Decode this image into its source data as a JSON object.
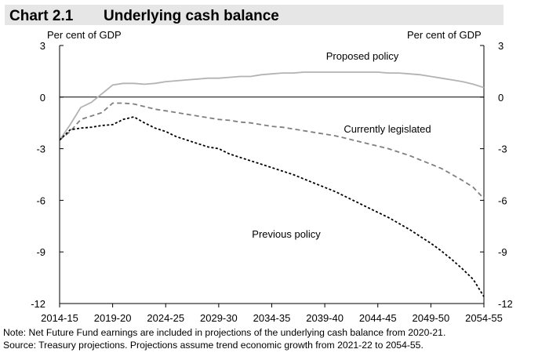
{
  "header": {
    "chart_number": "Chart 2.1",
    "title": "Underlying cash balance"
  },
  "notes": {
    "note": "Note: Net Future Fund earnings are included in projections of the underlying cash balance from 2020-21.",
    "source": "Source: Treasury projections. Projections assume trend economic growth from 2021-22 to 2054-55."
  },
  "chart_data": {
    "type": "line",
    "title": "Underlying cash balance",
    "ylabel_left": "Per cent of GDP",
    "ylabel_right": "Per cent of GDP",
    "ylim": [
      -12,
      3
    ],
    "yticks": [
      3,
      0,
      -3,
      -6,
      -9,
      -12
    ],
    "x_categories": [
      "2014-15",
      "2019-20",
      "2024-25",
      "2029-30",
      "2034-35",
      "2039-40",
      "2044-45",
      "2049-50",
      "2054-55"
    ],
    "xlim": [
      2014,
      2054
    ],
    "grid": false,
    "colors": {
      "proposed": "#b3b3b3",
      "legislated": "#7f7f7f",
      "previous": "#000000"
    },
    "series": [
      {
        "name": "Proposed policy",
        "style": "solid",
        "x": [
          2014,
          2015,
          2016,
          2017,
          2018,
          2019,
          2020,
          2021,
          2022,
          2023,
          2024,
          2025,
          2026,
          2027,
          2028,
          2029,
          2030,
          2031,
          2032,
          2033,
          2034,
          2035,
          2036,
          2037,
          2038,
          2039,
          2040,
          2041,
          2042,
          2043,
          2044,
          2045,
          2046,
          2047,
          2048,
          2049,
          2050,
          2051,
          2052,
          2053,
          2054
        ],
        "y": [
          -2.5,
          -1.6,
          -0.6,
          -0.3,
          0.2,
          0.7,
          0.8,
          0.8,
          0.75,
          0.8,
          0.9,
          0.95,
          1.0,
          1.05,
          1.1,
          1.1,
          1.15,
          1.2,
          1.2,
          1.3,
          1.35,
          1.4,
          1.4,
          1.45,
          1.45,
          1.45,
          1.45,
          1.45,
          1.45,
          1.45,
          1.45,
          1.4,
          1.4,
          1.35,
          1.3,
          1.2,
          1.1,
          1.0,
          0.9,
          0.75,
          0.55
        ]
      },
      {
        "name": "Currently legislated",
        "style": "dashed",
        "x": [
          2014,
          2015,
          2016,
          2017,
          2018,
          2019,
          2020,
          2021,
          2022,
          2023,
          2024,
          2025,
          2026,
          2027,
          2028,
          2029,
          2030,
          2031,
          2032,
          2033,
          2034,
          2035,
          2036,
          2037,
          2038,
          2039,
          2040,
          2041,
          2042,
          2043,
          2044,
          2045,
          2046,
          2047,
          2048,
          2049,
          2050,
          2051,
          2052,
          2053,
          2054
        ],
        "y": [
          -2.5,
          -2.0,
          -1.3,
          -1.1,
          -0.9,
          -0.35,
          -0.35,
          -0.4,
          -0.55,
          -0.7,
          -0.8,
          -0.9,
          -1.0,
          -1.1,
          -1.2,
          -1.3,
          -1.35,
          -1.45,
          -1.5,
          -1.6,
          -1.7,
          -1.75,
          -1.85,
          -1.95,
          -2.05,
          -2.15,
          -2.25,
          -2.4,
          -2.55,
          -2.7,
          -2.85,
          -3.0,
          -3.2,
          -3.4,
          -3.65,
          -3.9,
          -4.15,
          -4.5,
          -4.85,
          -5.25,
          -5.9
        ]
      },
      {
        "name": "Previous policy",
        "style": "dotted",
        "x": [
          2014,
          2015,
          2016,
          2017,
          2018,
          2019,
          2020,
          2021,
          2022,
          2023,
          2024,
          2025,
          2026,
          2027,
          2028,
          2029,
          2030,
          2031,
          2032,
          2033,
          2034,
          2035,
          2036,
          2037,
          2038,
          2039,
          2040,
          2041,
          2042,
          2043,
          2044,
          2045,
          2046,
          2047,
          2048,
          2049,
          2050,
          2051,
          2052,
          2053,
          2054
        ],
        "y": [
          -2.5,
          -1.9,
          -1.8,
          -1.75,
          -1.65,
          -1.6,
          -1.3,
          -1.15,
          -1.5,
          -1.8,
          -2.0,
          -2.3,
          -2.5,
          -2.7,
          -2.9,
          -3.0,
          -3.3,
          -3.5,
          -3.7,
          -3.9,
          -4.1,
          -4.3,
          -4.5,
          -4.75,
          -5.0,
          -5.25,
          -5.5,
          -5.8,
          -6.1,
          -6.4,
          -6.7,
          -7.0,
          -7.35,
          -7.7,
          -8.1,
          -8.5,
          -8.95,
          -9.45,
          -10.0,
          -10.6,
          -11.6
        ]
      }
    ],
    "annotations": [
      "Proposed policy",
      "Currently legislated",
      "Previous policy"
    ]
  }
}
